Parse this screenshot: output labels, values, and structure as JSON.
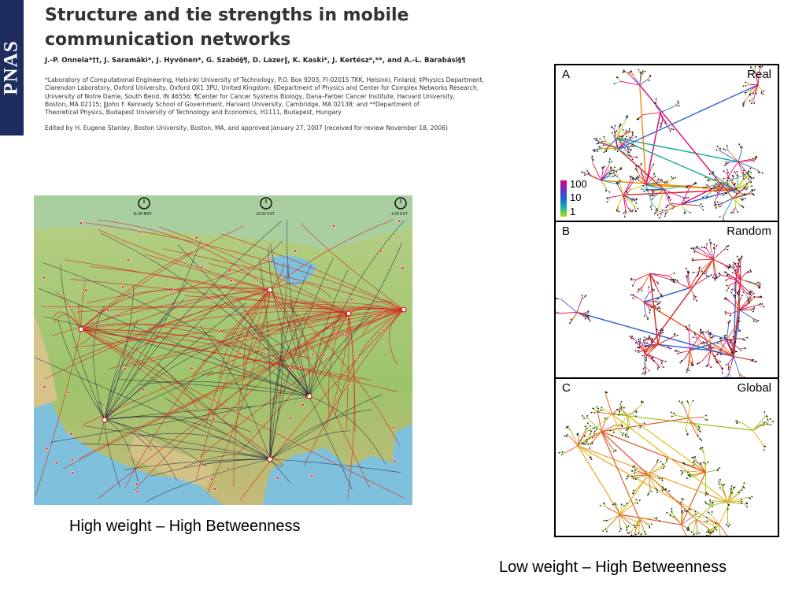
{
  "journal_mark": "PNAS",
  "paper": {
    "title": "Structure and tie strengths in mobile communication networks",
    "authors": "J.-P. Onnela*††, J. Saramäki*, J. Hyvönen*, G. Szabó§¶, D. Lazer‖, K. Kaski*, J. Kertész*,**, and A.-L. Barabási§¶",
    "affiliations": [
      "*Laboratory of Computational Engineering, Helsinki University of Technology, P.O. Box 9203, FI-02015 TKK, Helsinki, Finland; ‡Physics Department,",
      "Clarendon Laboratory, Oxford University, Oxford OX1 3PU, United Kingdom; §Department of Physics and Center for Complex Networks Research,",
      "University of Notre Dame, South Bend, IN 46556; ¶Center for Cancer Systems Biology, Dana–Farber Cancer Institute, Harvard University,",
      "Boston, MA 02115; ‖John F. Kennedy School of Government, Harvard University, Cambridge, MA 02138; and **Department of",
      "Theoretical Physics, Budapest University of Technology and Economics, H1111, Budapest, Hungary"
    ],
    "edited_by": "Edited by H. Eugene Stanley, Boston University, Boston, MA, and approved January 27, 2007 (received for review November 18, 2006)"
  },
  "map": {
    "clock_labels": [
      "11:00 MST",
      "12:00 CST",
      "1:00 EST"
    ],
    "colors": {
      "high_weight_link": "#d42a1e",
      "low_weight_link": "#1a1a3a",
      "land": "#9cc46a",
      "water": "#7fc0dc"
    }
  },
  "captions": {
    "left": "High weight – High Betweenness",
    "right": "Low weight – High Betweenness"
  },
  "panels": [
    {
      "letter": "A",
      "name": "Real"
    },
    {
      "letter": "B",
      "name": "Random"
    },
    {
      "letter": "C",
      "name": "Global"
    }
  ],
  "legend": {
    "values": [
      "100",
      "10",
      "1"
    ],
    "colors": [
      "#e4007c",
      "#1b63d6",
      "#c7d800"
    ]
  }
}
